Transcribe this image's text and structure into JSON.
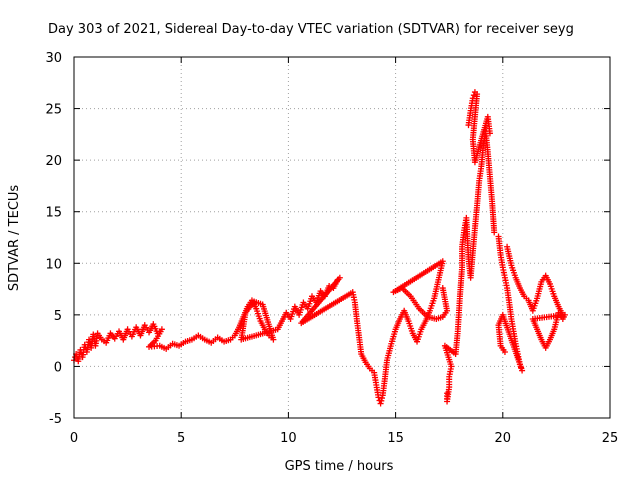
{
  "chart_data": {
    "type": "scatter",
    "title": "Day 303 of 2021, Sidereal Day-to-day VTEC variation (SDTVAR) for receiver seyg",
    "xlabel": "GPS time / hours",
    "ylabel": "SDTVAR / TECUs",
    "xlim": [
      0,
      25
    ],
    "ylim": [
      -5,
      30
    ],
    "xticks": [
      0,
      5,
      10,
      15,
      20,
      25
    ],
    "yticks": [
      -5,
      0,
      5,
      10,
      15,
      20,
      25,
      30
    ],
    "grid": true,
    "marker": "+",
    "color": "#ff0000",
    "series": [
      {
        "name": "SDTVAR",
        "points": [
          [
            0.0,
            0.6
          ],
          [
            0.1,
            1.2
          ],
          [
            0.2,
            0.5
          ],
          [
            0.3,
            1.6
          ],
          [
            0.4,
            0.9
          ],
          [
            0.5,
            2.1
          ],
          [
            0.6,
            1.4
          ],
          [
            0.7,
            2.6
          ],
          [
            0.8,
            1.8
          ],
          [
            0.9,
            3.1
          ],
          [
            1.0,
            2.0
          ],
          [
            1.1,
            3.2
          ],
          [
            1.3,
            2.6
          ],
          [
            1.5,
            2.3
          ],
          [
            1.7,
            3.2
          ],
          [
            1.9,
            2.7
          ],
          [
            2.1,
            3.4
          ],
          [
            2.3,
            2.6
          ],
          [
            2.5,
            3.6
          ],
          [
            2.7,
            2.9
          ],
          [
            2.9,
            3.8
          ],
          [
            3.1,
            3.0
          ],
          [
            3.3,
            4.0
          ],
          [
            3.5,
            3.3
          ],
          [
            3.7,
            4.1
          ],
          [
            3.9,
            3.2
          ],
          [
            4.1,
            3.6
          ],
          [
            3.8,
            2.5
          ],
          [
            3.5,
            1.9
          ],
          [
            4.0,
            2.0
          ],
          [
            4.3,
            1.7
          ],
          [
            4.6,
            2.2
          ],
          [
            4.9,
            2.0
          ],
          [
            5.2,
            2.4
          ],
          [
            5.5,
            2.6
          ],
          [
            5.8,
            3.0
          ],
          [
            6.1,
            2.6
          ],
          [
            6.4,
            2.3
          ],
          [
            6.7,
            2.8
          ],
          [
            7.0,
            2.4
          ],
          [
            7.3,
            2.6
          ],
          [
            7.5,
            3.0
          ],
          [
            7.7,
            3.8
          ],
          [
            7.9,
            4.8
          ],
          [
            8.1,
            5.8
          ],
          [
            8.3,
            6.4
          ],
          [
            8.5,
            5.6
          ],
          [
            8.7,
            4.4
          ],
          [
            8.9,
            3.6
          ],
          [
            9.1,
            3.0
          ],
          [
            9.3,
            2.6
          ],
          [
            8.8,
            6.0
          ],
          [
            8.4,
            6.3
          ],
          [
            8.0,
            5.2
          ],
          [
            7.8,
            2.6
          ],
          [
            9.5,
            3.6
          ],
          [
            9.7,
            4.4
          ],
          [
            9.9,
            5.2
          ],
          [
            10.1,
            4.6
          ],
          [
            10.3,
            5.8
          ],
          [
            10.5,
            5.0
          ],
          [
            10.7,
            6.2
          ],
          [
            10.9,
            5.6
          ],
          [
            11.1,
            6.8
          ],
          [
            11.3,
            6.2
          ],
          [
            11.5,
            7.3
          ],
          [
            11.7,
            6.8
          ],
          [
            11.9,
            7.8
          ],
          [
            12.1,
            7.6
          ],
          [
            12.3,
            8.4
          ],
          [
            12.4,
            8.6
          ],
          [
            10.6,
            4.2
          ],
          [
            13.0,
            7.2
          ],
          [
            13.1,
            6.2
          ],
          [
            13.2,
            4.4
          ],
          [
            13.3,
            2.8
          ],
          [
            13.4,
            1.2
          ],
          [
            13.6,
            0.4
          ],
          [
            13.8,
            -0.2
          ],
          [
            14.0,
            -0.6
          ],
          [
            14.1,
            -1.8
          ],
          [
            14.2,
            -3.0
          ],
          [
            14.3,
            -3.6
          ],
          [
            14.4,
            -2.8
          ],
          [
            14.5,
            -1.2
          ],
          [
            14.6,
            0.6
          ],
          [
            14.8,
            2.2
          ],
          [
            15.0,
            3.6
          ],
          [
            15.2,
            4.6
          ],
          [
            15.4,
            5.4
          ],
          [
            15.6,
            4.4
          ],
          [
            15.8,
            3.2
          ],
          [
            16.0,
            2.4
          ],
          [
            16.2,
            3.6
          ],
          [
            16.4,
            4.4
          ],
          [
            16.6,
            5.4
          ],
          [
            16.8,
            6.6
          ],
          [
            17.0,
            8.4
          ],
          [
            17.2,
            10.2
          ],
          [
            14.9,
            7.2
          ],
          [
            15.3,
            7.6
          ],
          [
            15.7,
            6.8
          ],
          [
            16.1,
            5.6
          ],
          [
            16.5,
            4.8
          ],
          [
            16.9,
            4.6
          ],
          [
            17.2,
            4.8
          ],
          [
            17.4,
            5.4
          ],
          [
            17.2,
            7.6
          ],
          [
            17.4,
            -2.6
          ],
          [
            17.4,
            -3.4
          ],
          [
            17.5,
            -2.0
          ],
          [
            17.5,
            -1.0
          ],
          [
            17.6,
            0.0
          ],
          [
            17.3,
            2.0
          ],
          [
            17.8,
            1.2
          ],
          [
            17.9,
            3.4
          ],
          [
            18.0,
            6.8
          ],
          [
            18.1,
            9.6
          ],
          [
            18.1,
            11.6
          ],
          [
            18.2,
            13.2
          ],
          [
            18.3,
            14.4
          ],
          [
            18.4,
            10.4
          ],
          [
            18.5,
            8.6
          ],
          [
            18.6,
            11.0
          ],
          [
            18.7,
            13.4
          ],
          [
            18.8,
            15.6
          ],
          [
            18.9,
            18.0
          ],
          [
            19.0,
            19.4
          ],
          [
            19.1,
            21.6
          ],
          [
            19.2,
            22.8
          ],
          [
            19.3,
            20.8
          ],
          [
            19.4,
            18.4
          ],
          [
            19.5,
            16.0
          ],
          [
            19.6,
            13.0
          ],
          [
            18.4,
            23.4
          ],
          [
            18.5,
            24.8
          ],
          [
            18.6,
            26.0
          ],
          [
            18.7,
            26.6
          ],
          [
            18.8,
            26.4
          ],
          [
            18.6,
            22.0
          ],
          [
            18.7,
            19.8
          ],
          [
            19.3,
            24.2
          ],
          [
            19.4,
            22.6
          ],
          [
            19.8,
            12.6
          ],
          [
            19.9,
            10.8
          ],
          [
            20.0,
            9.6
          ],
          [
            20.1,
            8.6
          ],
          [
            20.2,
            7.6
          ],
          [
            20.3,
            6.2
          ],
          [
            20.4,
            4.6
          ],
          [
            20.5,
            3.4
          ],
          [
            20.6,
            2.2
          ],
          [
            20.7,
            1.2
          ],
          [
            20.8,
            0.2
          ],
          [
            20.9,
            -0.4
          ],
          [
            20.0,
            5.0
          ],
          [
            19.8,
            4.0
          ],
          [
            19.9,
            2.0
          ],
          [
            20.1,
            1.4
          ],
          [
            20.2,
            11.6
          ],
          [
            20.4,
            9.8
          ],
          [
            20.6,
            8.6
          ],
          [
            20.8,
            7.6
          ],
          [
            21.0,
            6.8
          ],
          [
            21.2,
            6.4
          ],
          [
            21.4,
            5.4
          ],
          [
            21.6,
            6.6
          ],
          [
            21.8,
            8.2
          ],
          [
            22.0,
            8.8
          ],
          [
            22.2,
            8.0
          ],
          [
            22.4,
            6.8
          ],
          [
            22.6,
            5.8
          ],
          [
            22.8,
            5.0
          ],
          [
            21.4,
            4.6
          ],
          [
            21.6,
            3.6
          ],
          [
            21.8,
            2.6
          ],
          [
            22.0,
            1.8
          ],
          [
            22.2,
            2.6
          ],
          [
            22.4,
            3.6
          ],
          [
            22.6,
            5.2
          ],
          [
            22.8,
            4.6
          ],
          [
            22.9,
            5.0
          ]
        ]
      }
    ]
  }
}
